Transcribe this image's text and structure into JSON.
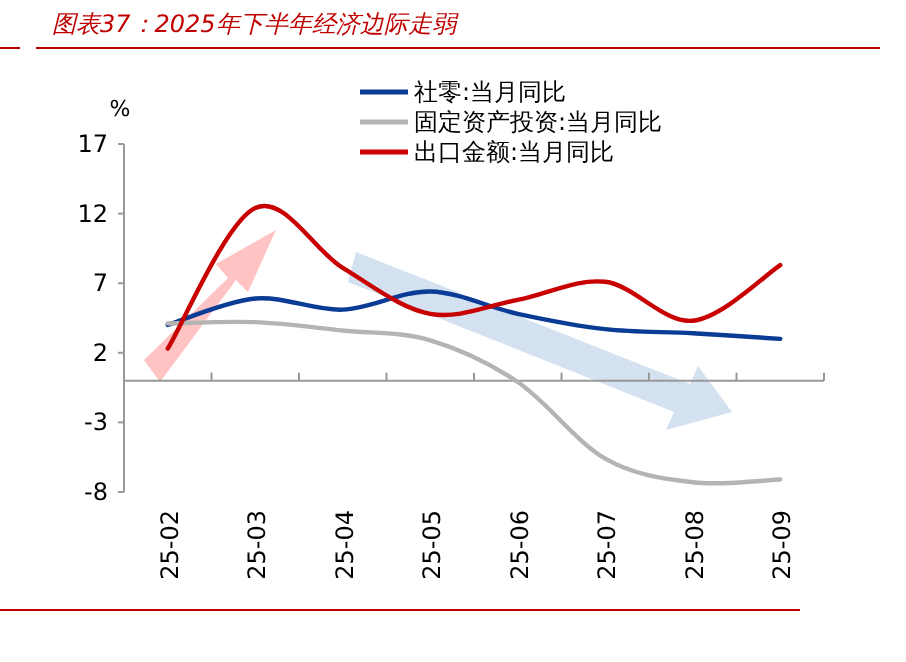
{
  "chart_data": {
    "type": "line",
    "title": "图表37：2025年下半年经济边际走弱",
    "ylabel": "%",
    "categories": [
      "25-02",
      "25-03",
      "25-04",
      "25-05",
      "25-06",
      "25-07",
      "25-08",
      "25-09"
    ],
    "series": [
      {
        "name": "社零:当月同比",
        "color": "#0a3c96",
        "values": [
          4.0,
          5.9,
          5.1,
          6.4,
          4.8,
          3.7,
          3.4,
          3.0
        ]
      },
      {
        "name": "固定资产投资:当月同比",
        "color": "#b4b4b4",
        "values": [
          4.1,
          4.2,
          3.6,
          2.9,
          -0.1,
          -5.6,
          -7.3,
          -7.1
        ]
      },
      {
        "name": "出口金额:当月同比",
        "color": "#c80000",
        "values": [
          2.3,
          12.4,
          8.1,
          4.8,
          5.8,
          7.1,
          4.3,
          8.3
        ]
      }
    ],
    "ylim": [
      -8,
      17
    ],
    "yticks": [
      -8,
      -3,
      2,
      7,
      12,
      17
    ],
    "grid": false,
    "legend": "top right",
    "marker": "none",
    "line_style": "solid"
  }
}
